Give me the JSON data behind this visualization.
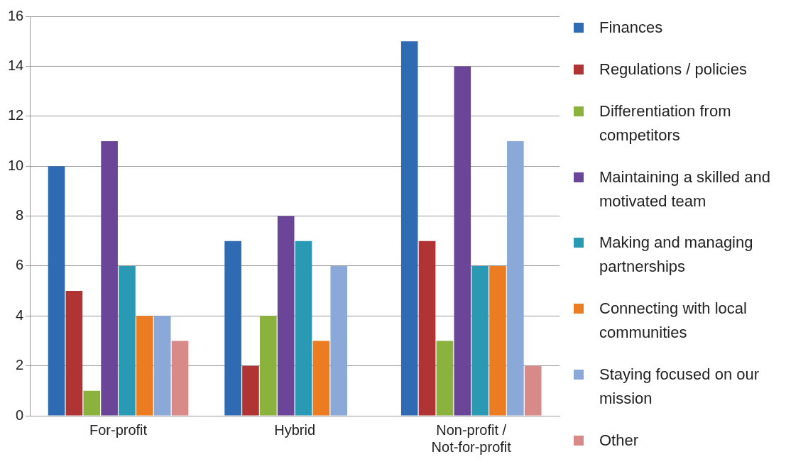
{
  "chart_data": {
    "type": "bar",
    "categories": [
      "For-profit",
      "Hybrid",
      "Non-profit / Not-for-profit"
    ],
    "series": [
      {
        "name": "Finances",
        "color": "#2f6bb3",
        "values": [
          10,
          7,
          15
        ]
      },
      {
        "name": "Regulations / policies",
        "color": "#b03434",
        "values": [
          5,
          2,
          7
        ]
      },
      {
        "name": "Differentiation from competitors",
        "color": "#8ab23c",
        "values": [
          1,
          4,
          3
        ]
      },
      {
        "name": "Maintaining a skilled and motivated team",
        "color": "#6a4598",
        "values": [
          11,
          8,
          14
        ]
      },
      {
        "name": "Making and managing partnerships",
        "color": "#2a9ab4",
        "values": [
          6,
          7,
          6
        ]
      },
      {
        "name": "Connecting with local communities",
        "color": "#ec7c22",
        "values": [
          4,
          3,
          6
        ]
      },
      {
        "name": "Staying focused on our mission",
        "color": "#8aa8d8",
        "values": [
          4,
          6,
          11
        ]
      },
      {
        "name": "Other",
        "color": "#d88a88",
        "values": [
          3,
          0,
          2
        ]
      }
    ],
    "ylim": [
      0,
      16
    ],
    "yticks": [
      0,
      2,
      4,
      6,
      8,
      10,
      12,
      14,
      16
    ],
    "grid": "y",
    "legend": "right"
  }
}
